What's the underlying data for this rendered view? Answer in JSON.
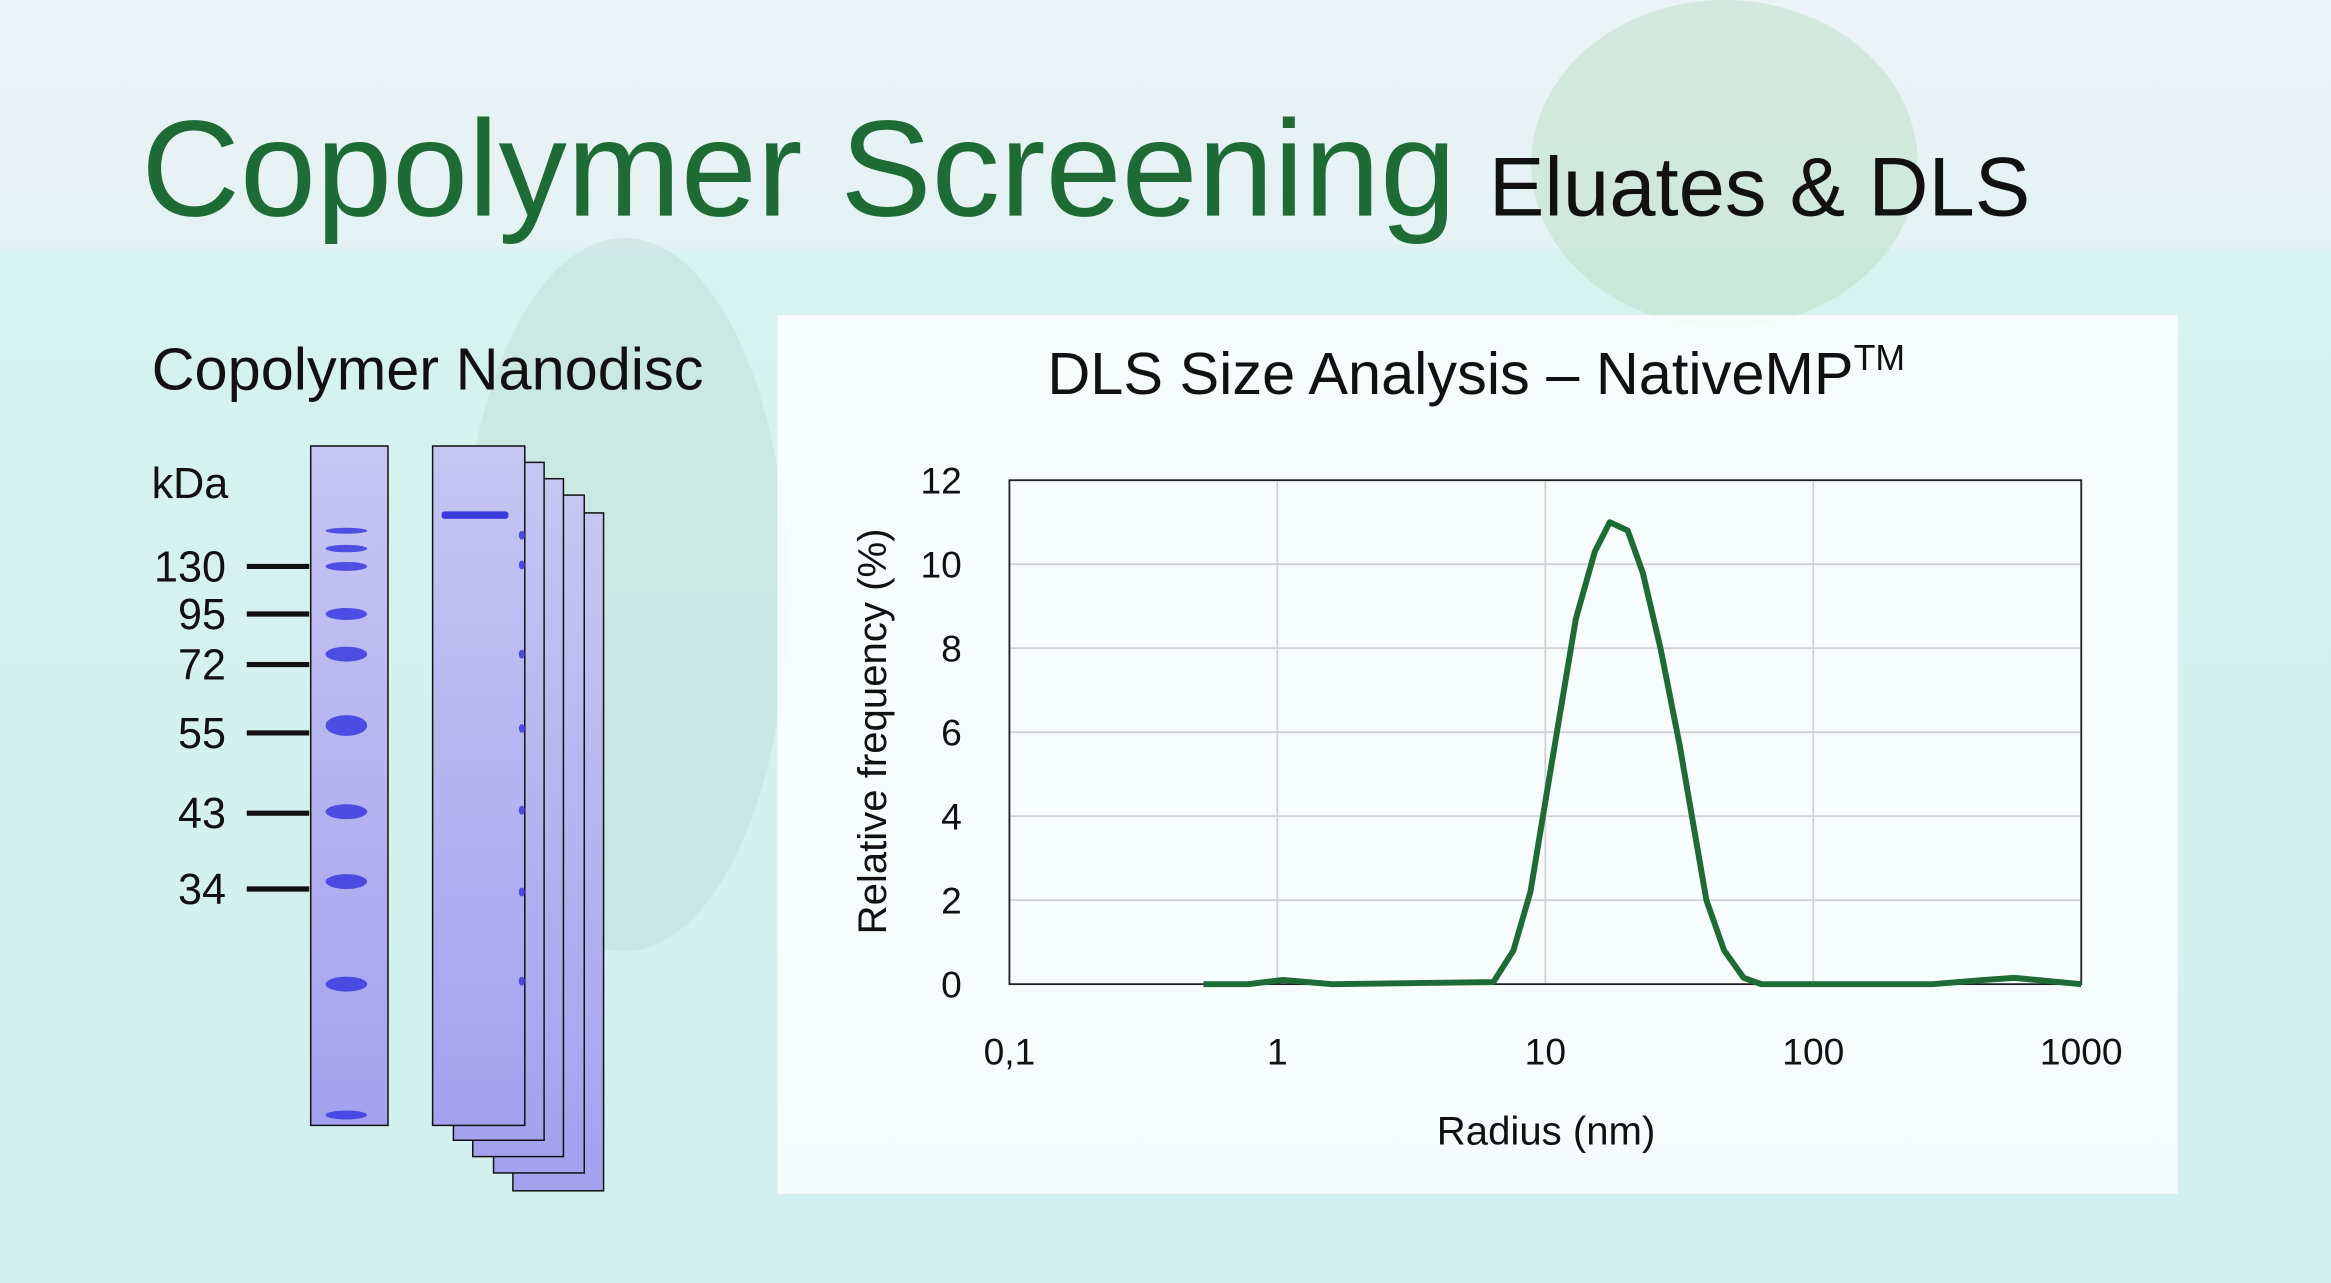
{
  "header": {
    "title": "Copolymer Screening",
    "subtitle": "Eluates & DLS"
  },
  "gel": {
    "title": "Copolymer Nanodisc",
    "unit": "kDa",
    "markers": [
      130,
      95,
      72,
      55,
      43,
      34
    ]
  },
  "chart_data": {
    "type": "line",
    "title": "DLS Size Analysis – NativeMP",
    "title_sup": "TM",
    "x_label": "Radius (nm)",
    "y_label": "Relative frequency (%)",
    "x": [
      0.53,
      0.78,
      1.05,
      1.6,
      6.4,
      7.6,
      8.8,
      10.4,
      13,
      15.3,
      17.4,
      20.3,
      23.1,
      26.9,
      31.7,
      39.9,
      46.5,
      55,
      64,
      278,
      435,
      562,
      1000
    ],
    "values": [
      0,
      0,
      0.1,
      0,
      0.05,
      0.8,
      2.2,
      5.0,
      8.7,
      10.3,
      11.0,
      10.8,
      9.8,
      8.0,
      5.7,
      2.0,
      0.8,
      0.15,
      0,
      0,
      0.1,
      0.15,
      0
    ],
    "color": "#1e6b35",
    "log_x": true,
    "grid": true,
    "xlim": [
      0.1,
      1000
    ],
    "xticks": [
      {
        "value": 0.1,
        "label": "0,1"
      },
      1,
      10,
      100,
      1000
    ],
    "ylim": [
      0,
      12
    ],
    "yticks": [
      0,
      2,
      4,
      6,
      8,
      10,
      12
    ]
  }
}
